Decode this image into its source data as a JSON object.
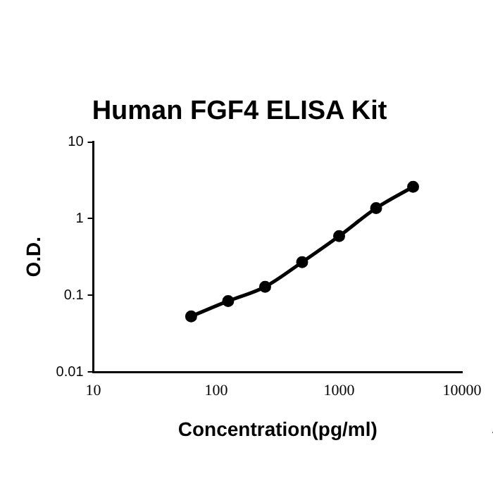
{
  "chart_data": {
    "type": "line",
    "title": "Human FGF4 ELISA Kit",
    "xlabel": "Concentration(pg/ml)",
    "ylabel": "O.D.",
    "x": [
      62.5,
      125,
      250,
      500,
      1000,
      2000,
      4000
    ],
    "series": [
      {
        "color": "#000000",
        "values": [
          0.053,
          0.084,
          0.129,
          0.27,
          0.59,
          1.37,
          2.6
        ]
      }
    ],
    "log": "xy",
    "xlim": [
      10,
      10000
    ],
    "xticks": [
      10,
      100,
      1000,
      10000
    ],
    "ylim": [
      0.01,
      10
    ],
    "yticks": [
      0.01,
      0.1,
      1,
      10
    ],
    "grid": false,
    "legend": false,
    "marker": "circle",
    "line_style": "solid"
  }
}
